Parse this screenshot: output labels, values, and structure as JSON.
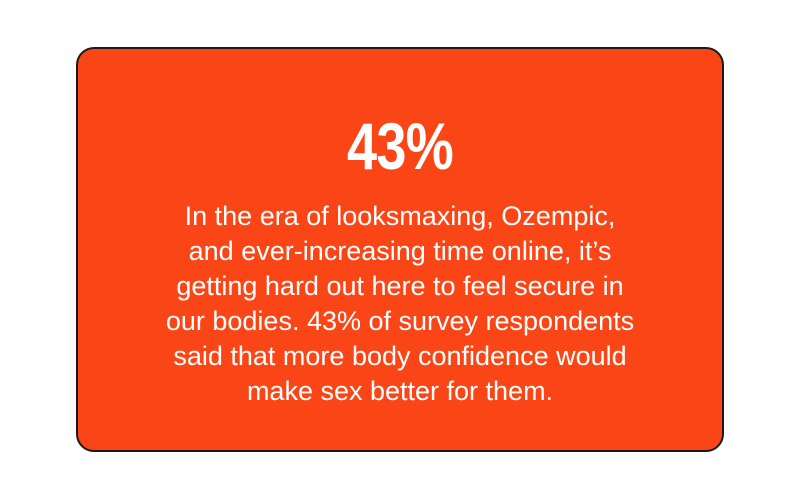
{
  "card": {
    "stat": "43%",
    "lines": [
      "In the era of looksmaxing, Ozempic,",
      "and ever-increasing time online, it’s",
      "getting hard out here to feel secure in",
      "our bodies. 43% of survey respondents",
      "said that more body confidence would",
      "make sex better for them."
    ]
  }
}
